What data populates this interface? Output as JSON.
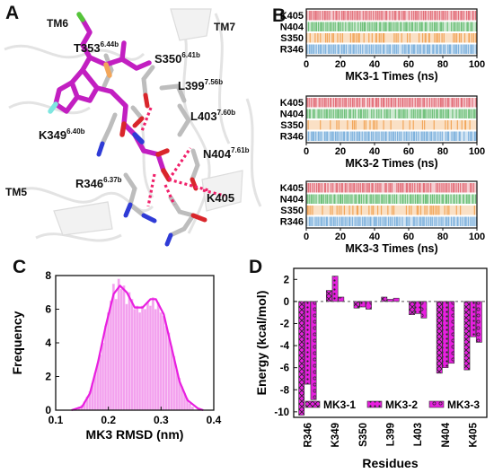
{
  "panel_letters": {
    "A": "A",
    "B": "B",
    "C": "C",
    "D": "D"
  },
  "panel_a": {
    "labels": {
      "tm6": "TM6",
      "tm7": "TM7",
      "tm5": "TM5",
      "t353": "T353",
      "t353_sup": "6.44b",
      "s350": "S350",
      "s350_sup": "6.41b",
      "l399": "L399",
      "l399_sup": "7.56b",
      "l403": "L403",
      "l403_sup": "7.60b",
      "k349": "K349",
      "k349_sup": "6.40b",
      "n404": "N404",
      "n404_sup": "7.61b",
      "r346": "R346",
      "r346_sup": "6.37b",
      "k405": "K405"
    },
    "colors": {
      "ligand": "#c21fc1",
      "residue": "#bdbdbd",
      "nitrogen": "#2f3bd6",
      "oxygen": "#d9262b",
      "fluorine": "#7fe6e0",
      "chlorine": "#55c43a",
      "hbond": "#f0206a"
    }
  },
  "chart_data": [
    {
      "type": "raster",
      "panel": "B1",
      "xlabel": "MK3-1 Times (ns)",
      "xlim": [
        0,
        100
      ],
      "xticks": [
        0,
        20,
        40,
        60,
        80,
        100
      ],
      "rows": [
        {
          "name": "K405",
          "color": "#e3707a",
          "occupancy": 0.9
        },
        {
          "name": "N404",
          "color": "#6fc07a",
          "occupancy": 0.97
        },
        {
          "name": "S350",
          "color": "#f2a65a",
          "occupancy": 0.55
        },
        {
          "name": "R346",
          "color": "#7fb2dd",
          "occupancy": 0.98
        }
      ]
    },
    {
      "type": "raster",
      "panel": "B2",
      "xlabel": "MK3-2 Times (ns)",
      "xlim": [
        0,
        100
      ],
      "xticks": [
        0,
        20,
        40,
        60,
        80,
        100
      ],
      "rows": [
        {
          "name": "K405",
          "color": "#e3707a",
          "occupancy": 0.9
        },
        {
          "name": "N404",
          "color": "#6fc07a",
          "occupancy": 0.92
        },
        {
          "name": "S350",
          "color": "#f2a65a",
          "occupancy": 0.35
        },
        {
          "name": "R346",
          "color": "#7fb2dd",
          "occupancy": 0.98
        }
      ]
    },
    {
      "type": "raster",
      "panel": "B3",
      "xlabel": "MK3-3 Times (ns)",
      "xlim": [
        0,
        100
      ],
      "xticks": [
        0,
        20,
        40,
        60,
        80,
        100
      ],
      "rows": [
        {
          "name": "K405",
          "color": "#e3707a",
          "occupancy": 0.9
        },
        {
          "name": "N404",
          "color": "#6fc07a",
          "occupancy": 0.97
        },
        {
          "name": "S350",
          "color": "#f2a65a",
          "occupancy": 0.55
        },
        {
          "name": "R346",
          "color": "#7fb2dd",
          "occupancy": 0.98
        }
      ]
    },
    {
      "type": "histogram",
      "panel": "C",
      "xlabel": "MK3 RMSD (nm)",
      "ylabel": "Frequency",
      "xlim": [
        0.1,
        0.4
      ],
      "ylim": [
        0,
        8
      ],
      "xticks": [
        0.1,
        0.2,
        0.3,
        0.4
      ],
      "yticks": [
        0,
        2,
        4,
        6,
        8
      ],
      "bar_color": "#f3a0ee",
      "line_color": "#e81fe0",
      "bin_width": 0.005,
      "bins": [
        [
          0.145,
          0.2
        ],
        [
          0.15,
          0.3
        ],
        [
          0.155,
          0.5
        ],
        [
          0.16,
          0.8
        ],
        [
          0.165,
          1.1
        ],
        [
          0.17,
          1.6
        ],
        [
          0.175,
          2.2
        ],
        [
          0.18,
          2.8
        ],
        [
          0.185,
          3.3
        ],
        [
          0.19,
          4.0
        ],
        [
          0.195,
          5.0
        ],
        [
          0.2,
          5.8
        ],
        [
          0.205,
          6.5
        ],
        [
          0.21,
          7.5
        ],
        [
          0.215,
          6.6
        ],
        [
          0.22,
          7.8
        ],
        [
          0.225,
          7.2
        ],
        [
          0.23,
          7.4
        ],
        [
          0.235,
          6.3
        ],
        [
          0.24,
          7.0
        ],
        [
          0.245,
          6.6
        ],
        [
          0.25,
          6.0
        ],
        [
          0.255,
          6.2
        ],
        [
          0.26,
          5.8
        ],
        [
          0.265,
          6.2
        ],
        [
          0.27,
          6.0
        ],
        [
          0.275,
          6.4
        ],
        [
          0.28,
          6.2
        ],
        [
          0.285,
          6.7
        ],
        [
          0.29,
          6.0
        ],
        [
          0.295,
          6.4
        ],
        [
          0.3,
          5.8
        ],
        [
          0.305,
          5.6
        ],
        [
          0.31,
          5.0
        ],
        [
          0.315,
          4.6
        ],
        [
          0.32,
          3.8
        ],
        [
          0.325,
          3.2
        ],
        [
          0.33,
          2.4
        ],
        [
          0.335,
          1.9
        ],
        [
          0.34,
          1.4
        ],
        [
          0.345,
          1.0
        ],
        [
          0.35,
          0.7
        ],
        [
          0.355,
          0.4
        ],
        [
          0.36,
          0.2
        ]
      ],
      "curve": [
        [
          0.13,
          0.0
        ],
        [
          0.15,
          0.2
        ],
        [
          0.165,
          1.0
        ],
        [
          0.18,
          2.8
        ],
        [
          0.195,
          5.0
        ],
        [
          0.21,
          6.9
        ],
        [
          0.222,
          7.4
        ],
        [
          0.235,
          7.0
        ],
        [
          0.25,
          6.1
        ],
        [
          0.265,
          6.1
        ],
        [
          0.28,
          6.6
        ],
        [
          0.29,
          6.6
        ],
        [
          0.305,
          5.7
        ],
        [
          0.32,
          3.7
        ],
        [
          0.335,
          1.7
        ],
        [
          0.35,
          0.6
        ],
        [
          0.37,
          0.1
        ],
        [
          0.38,
          0.0
        ]
      ]
    },
    {
      "type": "bar",
      "panel": "D",
      "ylabel": "Energy (kcal/mol)",
      "xlabel": "Residues",
      "ylim": [
        -10.5,
        3
      ],
      "yticks": [
        2,
        0,
        -2,
        -4,
        -6,
        -8,
        -10
      ],
      "categories": [
        "R346",
        "K349",
        "S350",
        "L399",
        "L403",
        "N404",
        "K405"
      ],
      "bar_color": "#e81fe0",
      "series": [
        {
          "name": "MK3-1",
          "values": [
            -10.3,
            1.0,
            -0.6,
            0.4,
            -1.2,
            -6.5,
            -6.2
          ]
        },
        {
          "name": "MK3-2",
          "values": [
            -7.5,
            2.3,
            -0.5,
            0.2,
            -1.1,
            -6.0,
            -3.2
          ]
        },
        {
          "name": "MK3-3",
          "values": [
            -8.9,
            0.4,
            -0.7,
            0.3,
            -1.5,
            -5.6,
            -3.7
          ]
        }
      ],
      "legend_position": "bottom-center"
    }
  ]
}
